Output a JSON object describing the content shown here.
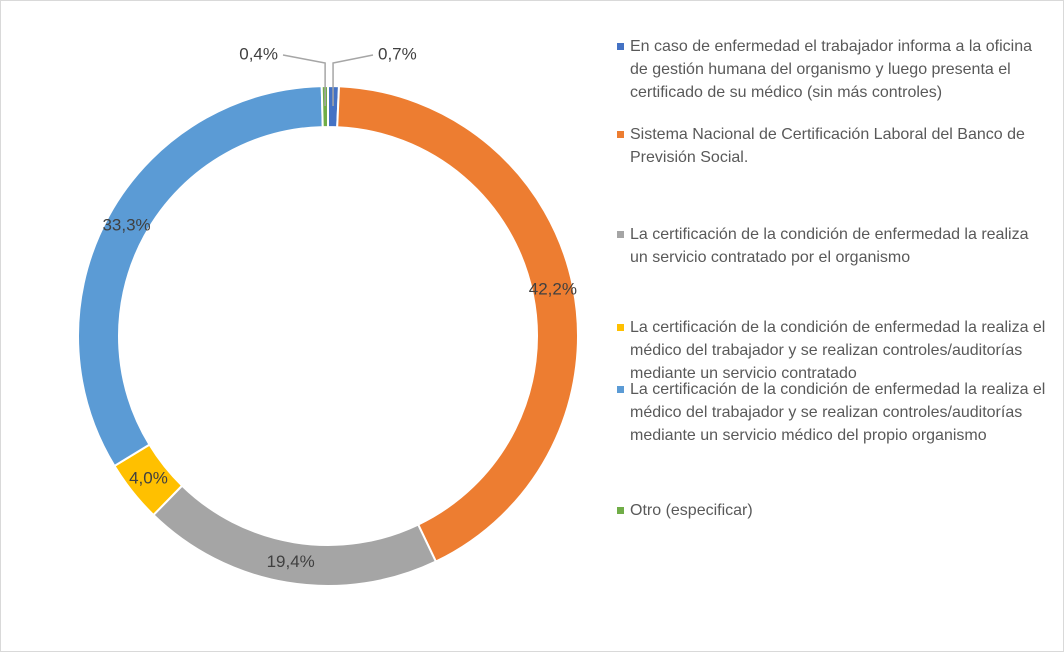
{
  "chart_data": {
    "type": "donut",
    "categories": [
      "En caso de enfermedad el trabajador informa a la oficina de gestión humana del organismo y luego presenta el certificado de su médico (sin más controles)",
      "Sistema Nacional de Certificación Laboral del Banco de Previsión Social.",
      "La certificación de la condición de enfermedad la realiza un servicio contratado por el organismo",
      "La certificación de la condición de enfermedad la realiza el médico del trabajador y se realizan controles/auditorías mediante un servicio contratado",
      "La certificación de la condición de enfermedad la realiza el médico del trabajador y se realizan controles/auditorías mediante un servicio médico del propio organismo",
      "Otro (especificar)"
    ],
    "values": [
      0.7,
      42.2,
      19.4,
      4.0,
      33.3,
      0.4
    ],
    "value_labels": [
      "0,7%",
      "42,2%",
      "19,4%",
      "4,0%",
      "33,3%",
      "0,4%"
    ],
    "colors": [
      "#4472c4",
      "#ed7d31",
      "#a5a5a5",
      "#ffc000",
      "#5b9bd5",
      "#70ad47"
    ],
    "legend": "right"
  }
}
